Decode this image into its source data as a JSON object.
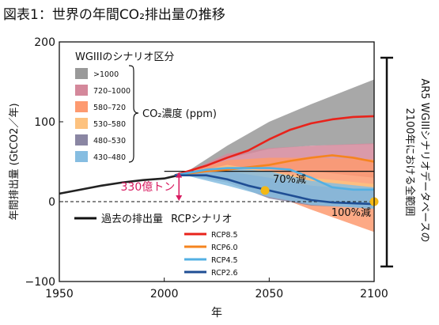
{
  "chart_data": {
    "type": "area",
    "title": "図表1：世界の年間CO₂排出量の推移",
    "xlabel": "年",
    "ylabel": "年間排出量 (GtCO2／年)",
    "xlim": [
      1950,
      2100
    ],
    "ylim": [
      -100,
      200
    ],
    "xticks": [
      1950,
      2000,
      2050,
      2100
    ],
    "yticks": [
      -100,
      0,
      100,
      200
    ],
    "grid": false,
    "historical": {
      "x": [
        1950,
        1960,
        1970,
        1980,
        1990,
        2000,
        2005,
        2010
      ],
      "y": [
        10,
        15,
        20,
        24,
        27,
        29,
        32,
        35
      ]
    },
    "ranges": [
      {
        "name": ">1000",
        "color": "#999999",
        "x": [
          2010,
          2030,
          2050,
          2070,
          2100
        ],
        "upper": [
          36,
          70,
          100,
          122,
          153
        ],
        "lower": [
          36,
          54,
          66,
          70,
          72
        ]
      },
      {
        "name": "720–1000",
        "color": "#d4889b",
        "x": [
          2010,
          2030,
          2050,
          2070,
          2100
        ],
        "upper": [
          36,
          60,
          67,
          70,
          73
        ],
        "lower": [
          34,
          44,
          42,
          38,
          30
        ]
      },
      {
        "name": "580–720",
        "color": "#fd9a70",
        "x": [
          2010,
          2030,
          2050,
          2070,
          2100
        ],
        "upper": [
          36,
          52,
          55,
          55,
          53
        ],
        "lower": [
          33,
          30,
          10,
          -10,
          -38
        ]
      },
      {
        "name": "530–580",
        "color": "#fdc27f",
        "x": [
          2010,
          2030,
          2050,
          2070,
          2100
        ],
        "upper": [
          35,
          46,
          38,
          30,
          22
        ],
        "lower": [
          33,
          30,
          14,
          0,
          -4
        ]
      },
      {
        "name": "480–530",
        "color": "#8a86a3",
        "x": [
          2010,
          2030,
          2050,
          2070,
          2100
        ],
        "upper": [
          35,
          38,
          30,
          20,
          14
        ],
        "lower": [
          33,
          24,
          4,
          -5,
          -8
        ]
      },
      {
        "name": "430–480",
        "color": "#86bde1",
        "x": [
          2010,
          2030,
          2050,
          2070,
          2100
        ],
        "upper": [
          35,
          42,
          38,
          26,
          18
        ],
        "lower": [
          33,
          20,
          6,
          -4,
          -9
        ]
      }
    ],
    "series": [
      {
        "name": "RCP8.5",
        "color": "#e8231b",
        "x": [
          2005,
          2020,
          2030,
          2040,
          2050,
          2060,
          2070,
          2080,
          2090,
          2100
        ],
        "y": [
          33,
          45,
          55,
          64,
          78,
          90,
          98,
          103,
          106,
          107
        ]
      },
      {
        "name": "RCP6.0",
        "color": "#f5841f",
        "x": [
          2005,
          2020,
          2030,
          2040,
          2050,
          2060,
          2070,
          2080,
          2090,
          2100
        ],
        "y": [
          33,
          38,
          40,
          43,
          46,
          51,
          55,
          58,
          55,
          50
        ]
      },
      {
        "name": "RCP4.5",
        "color": "#53b0e3",
        "x": [
          2005,
          2020,
          2030,
          2040,
          2050,
          2060,
          2070,
          2080,
          2090,
          2100
        ],
        "y": [
          33,
          40,
          42,
          42,
          42,
          40,
          30,
          18,
          15,
          15
        ]
      },
      {
        "name": "RCP2.6",
        "color": "#1f4e94",
        "x": [
          2005,
          2020,
          2030,
          2040,
          2050,
          2060,
          2070,
          2080,
          2090,
          2100
        ],
        "y": [
          33,
          33,
          28,
          20,
          14,
          8,
          2,
          -1,
          -2,
          -3
        ]
      }
    ],
    "reference_lines": {
      "current_level": 38,
      "zero": 0,
      "from_x": 2000
    },
    "markers": [
      {
        "x": 2048,
        "y": 14
      },
      {
        "x": 2100,
        "y": 0
      }
    ],
    "annotations": {
      "gap": "330億トン",
      "reduction_70": "70%減",
      "reduction_100": "100%減",
      "concentration": "CO₂濃度 (ppm)",
      "side_range": "AR5 WGIIIシナリオデータベースの2100年における全範囲",
      "side_range_line1": "AR5 WGIIIシナリオデータベースの",
      "side_range_line2": "2100年における全範囲"
    },
    "legend": {
      "title": "WGIIIのシナリオ区分",
      "history_label": "過去の排出量",
      "rcp_label": "RCPシナリオ"
    }
  }
}
